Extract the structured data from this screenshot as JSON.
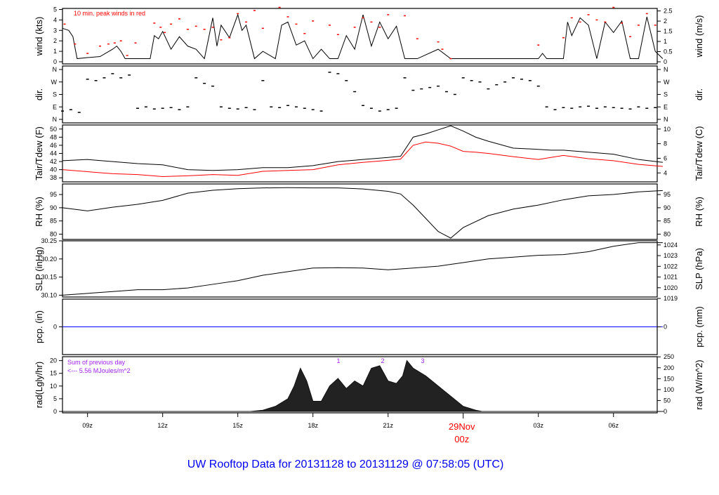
{
  "title": "UW Rooftop Data for 20131128  to  20131129 @ 07:58:05  (UTC)",
  "colors": {
    "title": "#0000ee",
    "peak": "#ff0000",
    "dew": "#ff0000",
    "pcp": "#0000ff",
    "annot": "#a020f0",
    "date": "#ff0000"
  },
  "chart_data": [
    {
      "type": "line",
      "id": "wind",
      "ylabel": "wind (kts)",
      "ylabel_right": "wind (m/s)",
      "ylim": [
        0,
        5
      ],
      "yticks": [
        "0",
        "1",
        "2",
        "3",
        "4",
        "5"
      ],
      "yticks_right": [
        "0",
        "0.5",
        "1",
        "1.5",
        "2",
        "2.5"
      ],
      "annotation": "10 min. peak winds in red",
      "t": [
        "08:00",
        "08:15",
        "08:25",
        "08:35",
        "09:00",
        "09:30",
        "10:00",
        "10:10",
        "10:20",
        "10:30",
        "11:00",
        "11:30",
        "11:40",
        "11:50",
        "12:00",
        "12:20",
        "12:40",
        "13:00",
        "13:20",
        "13:40",
        "14:00",
        "14:10",
        "14:20",
        "14:40",
        "15:00",
        "15:10",
        "15:20",
        "15:40",
        "16:00",
        "16:30",
        "16:45",
        "17:00",
        "17:20",
        "17:40",
        "18:00",
        "18:20",
        "18:40",
        "19:00",
        "19:20",
        "19:40",
        "20:00",
        "20:20",
        "20:40",
        "21:00",
        "21:20",
        "21:40",
        "21:50",
        "22:00",
        "22:10",
        "23:00",
        "23:30",
        "23:45",
        "00:00",
        "01:00",
        "02:00",
        "03:00",
        "03:10",
        "03:20",
        "04:00",
        "04:10",
        "04:20",
        "04:40",
        "05:00",
        "05:20",
        "05:40",
        "06:00",
        "06:20",
        "06:40",
        "07:00",
        "07:20",
        "07:40",
        "07:58"
      ],
      "v": [
        3.2,
        3,
        2.4,
        0.3,
        0.4,
        0.5,
        1.2,
        1.5,
        1,
        0.3,
        0.3,
        0.3,
        2.5,
        2.2,
        2.9,
        1.2,
        2.4,
        1.5,
        1.2,
        0.3,
        4.2,
        1.5,
        3.5,
        2.3,
        4.5,
        3,
        3.5,
        0.3,
        1,
        0.3,
        3.5,
        3.8,
        1.6,
        2,
        0.3,
        1.2,
        0.3,
        0.3,
        2.5,
        1.2,
        4.5,
        1.5,
        3.8,
        2.2,
        3.4,
        0.3,
        0.3,
        0.3,
        0.3,
        1.2,
        0.3,
        0.3,
        0.3,
        0.3,
        0.3,
        0.3,
        0.8,
        0.3,
        0.3,
        3.8,
        2.5,
        4.2,
        3.5,
        0.3,
        3.8,
        2.8,
        3.9,
        0.3,
        0.3,
        4.3,
        1,
        0.3
      ]
    },
    {
      "type": "scatter",
      "id": "peak",
      "name": "10 min. peak winds",
      "t": [
        "08:05",
        "08:30",
        "09:00",
        "09:30",
        "09:50",
        "10:05",
        "10:20",
        "10:35",
        "10:55",
        "11:40",
        "11:55",
        "12:05",
        "12:20",
        "12:40",
        "13:00",
        "13:20",
        "13:40",
        "14:00",
        "14:20",
        "14:40",
        "15:00",
        "15:20",
        "15:40",
        "16:00",
        "16:40",
        "17:00",
        "17:20",
        "17:40",
        "18:00",
        "18:40",
        "19:00",
        "19:40",
        "20:00",
        "20:20",
        "20:40",
        "21:00",
        "21:40",
        "22:10",
        "23:00",
        "23:10",
        "23:30",
        "03:00",
        "04:00",
        "04:20",
        "04:40",
        "05:00",
        "05:20",
        "05:40",
        "06:00",
        "06:20",
        "06:40",
        "07:00",
        "07:20",
        "07:40"
      ],
      "v": [
        3.6,
        1.7,
        0.8,
        1.5,
        1.7,
        1.8,
        2.0,
        0.6,
        1.8,
        3.7,
        3.3,
        2.8,
        3.6,
        4.1,
        3.1,
        3.4,
        3.1,
        3.3,
        2.1,
        2.3,
        4.6,
        3.8,
        4.9,
        3.2,
        5.2,
        4.3,
        3.6,
        2.7,
        3.9,
        3.5,
        2.6,
        3.3,
        4.2,
        3.8,
        3.3,
        4.5,
        4.4,
        2.2,
        1.9,
        1.2,
        0.3,
        1.6,
        2.3,
        4.2,
        3.8,
        4.5,
        4.0,
        3.8,
        5.2,
        3.7,
        2.4,
        3.5,
        4.6,
        3.5
      ]
    },
    {
      "type": "scatter",
      "id": "dir",
      "ylabel": "dir.",
      "ylabel_right": "dir.",
      "yticks": [
        "N",
        "E",
        "S",
        "W",
        "N"
      ],
      "ylim": [
        0,
        360
      ],
      "t": [
        "08:00",
        "08:20",
        "08:40",
        "09:00",
        "09:20",
        "09:40",
        "10:00",
        "10:20",
        "10:40",
        "11:00",
        "11:20",
        "11:40",
        "12:00",
        "12:20",
        "12:40",
        "13:00",
        "13:20",
        "13:40",
        "14:00",
        "14:20",
        "14:40",
        "15:00",
        "15:20",
        "15:40",
        "16:00",
        "16:20",
        "16:40",
        "17:00",
        "17:20",
        "17:40",
        "18:00",
        "18:20",
        "18:40",
        "19:00",
        "19:20",
        "19:40",
        "20:00",
        "20:20",
        "20:40",
        "21:00",
        "21:20",
        "21:40",
        "22:00",
        "22:20",
        "22:40",
        "23:00",
        "23:20",
        "23:40",
        "00:00",
        "00:20",
        "00:40",
        "01:00",
        "01:20",
        "01:40",
        "02:00",
        "02:20",
        "02:40",
        "03:00",
        "03:20",
        "03:40",
        "04:00",
        "04:20",
        "04:40",
        "05:00",
        "05:20",
        "05:40",
        "06:00",
        "06:20",
        "06:40",
        "07:00",
        "07:20",
        "07:40"
      ],
      "v": [
        60,
        70,
        50,
        290,
        280,
        300,
        330,
        300,
        320,
        80,
        90,
        75,
        80,
        85,
        70,
        90,
        300,
        260,
        240,
        90,
        80,
        75,
        85,
        70,
        280,
        90,
        85,
        100,
        90,
        80,
        70,
        60,
        340,
        330,
        280,
        200,
        100,
        80,
        60,
        70,
        80,
        300,
        210,
        220,
        230,
        240,
        200,
        180,
        300,
        280,
        270,
        220,
        250,
        270,
        300,
        290,
        280,
        240,
        90,
        70,
        85,
        80,
        90,
        95,
        80,
        90,
        85,
        80,
        75,
        90,
        80,
        85
      ]
    },
    {
      "type": "line",
      "id": "temp",
      "ylabel": "Tair/Tdew (F)",
      "ylabel_right": "Tair/Tdew (C)",
      "ylim": [
        37,
        51
      ],
      "yticks": [
        "38",
        "40",
        "42",
        "44",
        "46",
        "48",
        "50"
      ],
      "yticks_right": [
        "4",
        "6",
        "8",
        "10"
      ],
      "t": [
        "08:00",
        "09:00",
        "10:00",
        "11:00",
        "12:00",
        "13:00",
        "14:00",
        "15:00",
        "16:00",
        "17:00",
        "18:00",
        "19:00",
        "20:00",
        "21:00",
        "21:30",
        "22:00",
        "22:30",
        "23:00",
        "23:30",
        "00:00",
        "00:30",
        "01:00",
        "02:00",
        "03:00",
        "03:30",
        "04:00",
        "05:00",
        "06:00",
        "07:00",
        "07:58"
      ],
      "series": [
        {
          "id": "tair",
          "values": [
            42.2,
            42.5,
            42,
            41.5,
            41.2,
            40,
            39.8,
            40,
            40.5,
            40.5,
            41,
            42,
            42.5,
            43,
            43.3,
            48,
            48.8,
            49.8,
            50.8,
            49.5,
            48,
            47,
            45.3,
            45,
            44.8,
            44.8,
            44.3,
            43.8,
            42.5,
            41.8
          ]
        },
        {
          "id": "tdew",
          "values": [
            40,
            39.5,
            39,
            38.8,
            38.3,
            38.5,
            38.8,
            38.6,
            39.6,
            39.8,
            40,
            41.2,
            41.8,
            42.3,
            42.6,
            46,
            46.8,
            46.5,
            45.8,
            44.5,
            44.3,
            44,
            43.2,
            42.5,
            43,
            43.5,
            42.7,
            42.2,
            41.3,
            40.8
          ]
        }
      ]
    },
    {
      "type": "line",
      "id": "rh",
      "ylabel": "RH (%)",
      "ylabel_right": "RH (%)",
      "ylim": [
        78,
        99
      ],
      "yticks": [
        "80",
        "85",
        "90",
        "95"
      ],
      "t": [
        "08:00",
        "09:00",
        "10:00",
        "11:00",
        "12:00",
        "13:00",
        "14:00",
        "15:00",
        "16:00",
        "17:00",
        "18:00",
        "19:00",
        "20:00",
        "21:00",
        "21:30",
        "22:00",
        "22:30",
        "23:00",
        "23:30",
        "00:00",
        "01:00",
        "02:00",
        "03:00",
        "04:00",
        "05:00",
        "06:00",
        "07:00",
        "07:58"
      ],
      "v": [
        90,
        88.8,
        90.2,
        91.3,
        92.8,
        95.5,
        96.6,
        97.2,
        97.5,
        97.6,
        97.5,
        97.5,
        97.1,
        96.2,
        95.2,
        91,
        86,
        81,
        78.5,
        82.5,
        87,
        89.5,
        91,
        93,
        94.5,
        95,
        96,
        96.5
      ]
    },
    {
      "type": "line",
      "id": "slp",
      "ylabel": "SLP (inHg)",
      "ylabel_right": "SLP (hPa)",
      "ylim": [
        30.095,
        30.25
      ],
      "yticks": [
        "30.10",
        "30.15",
        "30.20",
        "30.25"
      ],
      "yticks_right": [
        "1019",
        "1020",
        "1021",
        "1022",
        "1023",
        "1024"
      ],
      "t": [
        "08:00",
        "09:00",
        "10:00",
        "11:00",
        "12:00",
        "13:00",
        "14:00",
        "15:00",
        "16:00",
        "17:00",
        "18:00",
        "19:00",
        "20:00",
        "21:00",
        "22:00",
        "23:00",
        "00:00",
        "01:00",
        "02:00",
        "03:00",
        "04:00",
        "05:00",
        "06:00",
        "07:00",
        "07:58"
      ],
      "v": [
        30.1,
        30.105,
        30.11,
        30.115,
        30.115,
        30.12,
        30.13,
        30.14,
        30.155,
        30.165,
        30.175,
        30.176,
        30.175,
        30.17,
        30.175,
        30.18,
        30.19,
        30.2,
        30.205,
        30.21,
        30.212,
        30.22,
        30.235,
        30.245,
        30.245
      ]
    },
    {
      "type": "line",
      "id": "pcp",
      "ylabel": "pcp. (in)",
      "ylabel_right": "pcp. (mm)",
      "yticks": [
        "0"
      ],
      "yticks_right": [
        "0"
      ],
      "t": [
        "08:00",
        "07:58"
      ],
      "v": [
        0,
        0
      ]
    },
    {
      "type": "area",
      "id": "rad",
      "ylabel": "rad(Lgly/hr)",
      "ylabel_right": "rad (W/m^2)",
      "ylim": [
        0,
        21
      ],
      "yticks": [
        "0",
        "5",
        "10",
        "15",
        "20"
      ],
      "yticks_right": [
        "0",
        "50",
        "100",
        "150",
        "200",
        "250"
      ],
      "annotation": [
        "Sum of previous day",
        "<--- 5.56 MJoules/m^2"
      ],
      "hour_marks": [
        "1",
        "2",
        "3"
      ],
      "t": [
        "08:00",
        "15:30",
        "16:00",
        "16:30",
        "17:00",
        "17:15",
        "17:30",
        "17:45",
        "18:00",
        "18:20",
        "18:40",
        "19:00",
        "19:20",
        "19:40",
        "20:00",
        "20:20",
        "20:40",
        "21:00",
        "21:20",
        "21:35",
        "21:45",
        "22:00",
        "22:30",
        "23:00",
        "23:30",
        "00:00",
        "00:30",
        "00:45",
        "08:00"
      ],
      "v": [
        0,
        0,
        0.5,
        2,
        5,
        10,
        17,
        12,
        4,
        4,
        10,
        13,
        9,
        12,
        10,
        17,
        18,
        12,
        11,
        14,
        20,
        17,
        14,
        10,
        6,
        2,
        0.5,
        0,
        0
      ]
    },
    {
      "type": "axis",
      "id": "time",
      "xticks": [
        "09z",
        "12z",
        "15z",
        "18z",
        "21z",
        "03z",
        "06z"
      ],
      "date_label": "29Nov",
      "date_tick": "00z"
    }
  ]
}
